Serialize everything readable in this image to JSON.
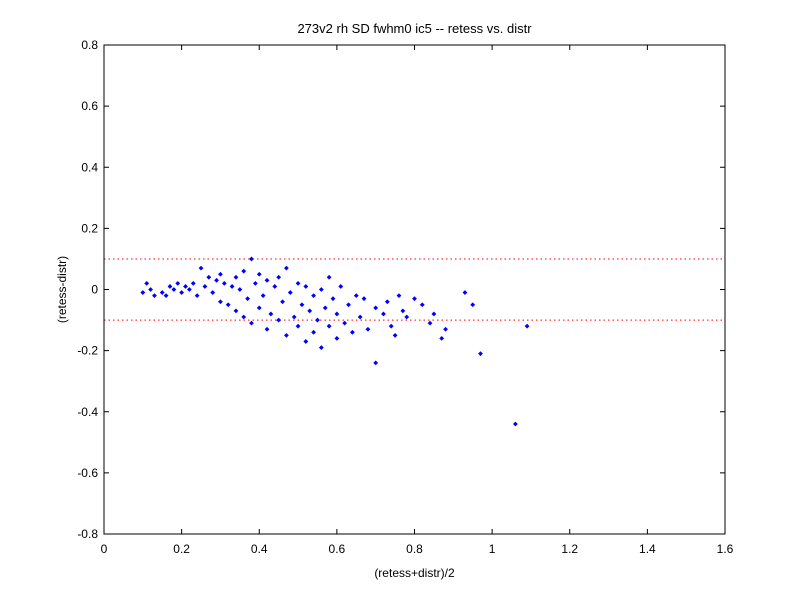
{
  "chart_data": {
    "type": "scatter",
    "title": "273v2 rh SD fwhm0 ic5 -- retess vs. distr",
    "xlabel": "(retess+distr)/2",
    "ylabel": "(retess-distr)",
    "xlim": [
      0,
      1.6
    ],
    "ylim": [
      -0.8,
      0.8
    ],
    "xticks": [
      "0",
      "0.2",
      "0.4",
      "0.6",
      "0.8",
      "1",
      "1.2",
      "1.4",
      "1.6"
    ],
    "yticks": [
      "-0.8",
      "-0.6",
      "-0.4",
      "-0.2",
      "0",
      "0.2",
      "0.4",
      "0.6",
      "0.8"
    ],
    "grid": false,
    "reference_lines": [
      0.1,
      -0.1
    ],
    "colors": {
      "points": "#0000ff",
      "reference_lines": "#ff0000"
    },
    "series": [
      {
        "points": [
          [
            0.1,
            -0.01
          ],
          [
            0.11,
            0.02
          ],
          [
            0.12,
            0.0
          ],
          [
            0.13,
            -0.02
          ],
          [
            0.15,
            -0.01
          ],
          [
            0.16,
            -0.02
          ],
          [
            0.17,
            0.01
          ],
          [
            0.18,
            0.0
          ],
          [
            0.19,
            0.02
          ],
          [
            0.2,
            -0.01
          ],
          [
            0.21,
            0.01
          ],
          [
            0.22,
            0.0
          ],
          [
            0.23,
            0.02
          ],
          [
            0.24,
            -0.02
          ],
          [
            0.25,
            0.07
          ],
          [
            0.26,
            0.01
          ],
          [
            0.27,
            0.04
          ],
          [
            0.28,
            -0.01
          ],
          [
            0.29,
            0.03
          ],
          [
            0.3,
            0.05
          ],
          [
            0.3,
            -0.04
          ],
          [
            0.31,
            0.02
          ],
          [
            0.32,
            -0.05
          ],
          [
            0.33,
            0.01
          ],
          [
            0.34,
            -0.07
          ],
          [
            0.34,
            0.04
          ],
          [
            0.35,
            0.0
          ],
          [
            0.36,
            -0.09
          ],
          [
            0.36,
            0.06
          ],
          [
            0.37,
            -0.03
          ],
          [
            0.38,
            0.1
          ],
          [
            0.38,
            -0.11
          ],
          [
            0.39,
            0.02
          ],
          [
            0.4,
            -0.06
          ],
          [
            0.4,
            0.05
          ],
          [
            0.41,
            -0.02
          ],
          [
            0.42,
            -0.13
          ],
          [
            0.42,
            0.03
          ],
          [
            0.43,
            -0.08
          ],
          [
            0.44,
            0.01
          ],
          [
            0.45,
            -0.1
          ],
          [
            0.45,
            0.04
          ],
          [
            0.46,
            -0.04
          ],
          [
            0.47,
            -0.15
          ],
          [
            0.47,
            0.07
          ],
          [
            0.48,
            -0.01
          ],
          [
            0.49,
            -0.09
          ],
          [
            0.5,
            0.02
          ],
          [
            0.5,
            -0.12
          ],
          [
            0.51,
            -0.05
          ],
          [
            0.52,
            -0.17
          ],
          [
            0.52,
            0.01
          ],
          [
            0.53,
            -0.07
          ],
          [
            0.54,
            -0.14
          ],
          [
            0.54,
            -0.02
          ],
          [
            0.55,
            -0.1
          ],
          [
            0.56,
            -0.19
          ],
          [
            0.56,
            0.0
          ],
          [
            0.57,
            -0.06
          ],
          [
            0.58,
            -0.12
          ],
          [
            0.58,
            0.04
          ],
          [
            0.59,
            -0.03
          ],
          [
            0.6,
            -0.16
          ],
          [
            0.6,
            -0.08
          ],
          [
            0.61,
            0.01
          ],
          [
            0.62,
            -0.11
          ],
          [
            0.63,
            -0.05
          ],
          [
            0.64,
            -0.14
          ],
          [
            0.65,
            -0.02
          ],
          [
            0.66,
            -0.09
          ],
          [
            0.67,
            -0.03
          ],
          [
            0.68,
            -0.13
          ],
          [
            0.7,
            -0.24
          ],
          [
            0.7,
            -0.06
          ],
          [
            0.72,
            -0.08
          ],
          [
            0.73,
            -0.04
          ],
          [
            0.74,
            -0.12
          ],
          [
            0.75,
            -0.15
          ],
          [
            0.76,
            -0.02
          ],
          [
            0.77,
            -0.07
          ],
          [
            0.78,
            -0.09
          ],
          [
            0.8,
            -0.03
          ],
          [
            0.82,
            -0.05
          ],
          [
            0.84,
            -0.11
          ],
          [
            0.85,
            -0.08
          ],
          [
            0.87,
            -0.16
          ],
          [
            0.88,
            -0.13
          ],
          [
            0.93,
            -0.01
          ],
          [
            0.95,
            -0.05
          ],
          [
            0.97,
            -0.21
          ],
          [
            1.06,
            -0.44
          ],
          [
            1.09,
            -0.12
          ]
        ]
      }
    ]
  }
}
